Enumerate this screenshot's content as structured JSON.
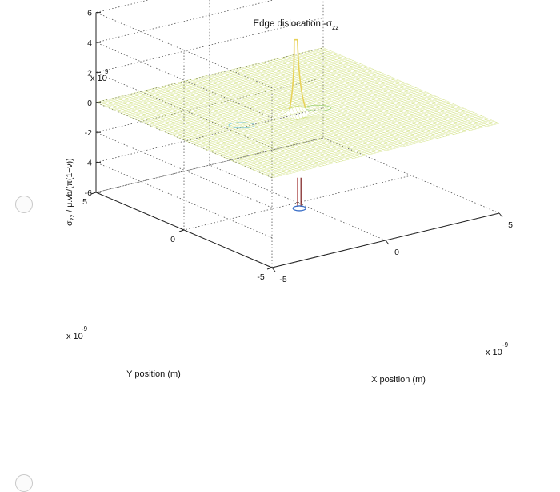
{
  "page": {
    "radio_options": [
      {
        "selected": false
      },
      {
        "selected": false
      }
    ]
  },
  "chart_data": {
    "type": "surface3d",
    "title": "Edge dislocation -σ",
    "title_subscript": "zz",
    "zlabel": {
      "main": "σ",
      "sub": "zz",
      "rest": " / μ.vb/(π(1−ν))"
    },
    "xlabel": "X position (m)",
    "ylabel": "Y position (m)",
    "x": {
      "range": [
        -5e-09,
        5e-09
      ],
      "ticks": [
        -5,
        0,
        5
      ],
      "multiplier": "x 10",
      "exponent": "-9"
    },
    "y": {
      "range": [
        -5e-09,
        5e-09
      ],
      "ticks": [
        -5,
        0,
        5
      ],
      "multiplier": "x 10",
      "exponent": "-9"
    },
    "z": {
      "range": [
        -6000000000.0,
        6000000000.0
      ],
      "ticks": [
        -6,
        -4,
        -2,
        0,
        2,
        4,
        6
      ],
      "multiplier": "x 10",
      "exponent": "9"
    },
    "grid": true,
    "surface": {
      "function": "-sigma_zz ∝ y(3x²+y²)/(x²+y²)²",
      "singularity_at": [
        0,
        0
      ],
      "colormap": "jet-like (blue low, green mid, yellow/red high)"
    }
  }
}
